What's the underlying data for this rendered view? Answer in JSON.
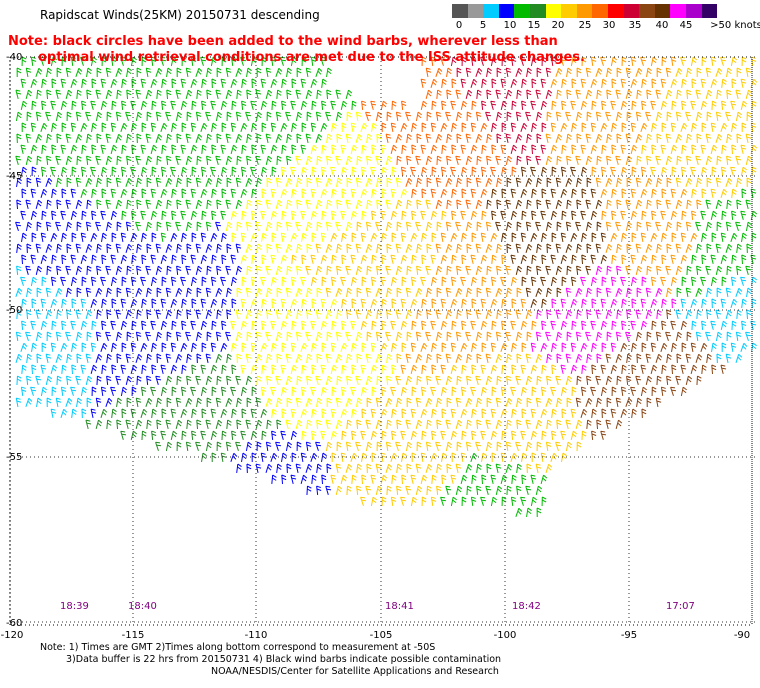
{
  "title": "Rapidscat Winds(25KM) 20150731 descending",
  "note": {
    "line1": "Note: black circles have been added to the wind barbs, wherever less than",
    "line2": "optimal wind retrieval conditions are met due to the ISS attitude changes."
  },
  "legend": {
    "colors": [
      "#555555",
      "#999999",
      "#00ccff",
      "#0000ff",
      "#00bb00",
      "#228b22",
      "#ffff00",
      "#ffcc00",
      "#ff9900",
      "#ff6600",
      "#ff0000",
      "#cc0033",
      "#8b4513",
      "#663300",
      "#ff00ff",
      "#aa00cc",
      "#330066"
    ],
    "labels": [
      "0",
      "5",
      "10",
      "15",
      "20",
      "25",
      "30",
      "35",
      "40",
      "45",
      ">50 knots"
    ]
  },
  "axes": {
    "lat_labels": [
      "-40",
      "-45",
      "-50",
      "-55",
      "-60"
    ],
    "lon_labels": [
      "-120",
      "-115",
      "-110",
      "-105",
      "-100",
      "-95",
      "-90"
    ]
  },
  "time_labels": [
    "18:39",
    "18:40",
    "18:41",
    "18:42",
    "17:07"
  ],
  "footnote": {
    "line1": "Note: 1) Times are GMT 2)Times along bottom correspond to measurement at -50S",
    "line2": "3)Data buffer is 22 hrs from 20150731 4) Black wind barbs indicate possible contamination"
  },
  "credit": "NOAA/NESDIS/Center for Satellite Applications and Research"
}
